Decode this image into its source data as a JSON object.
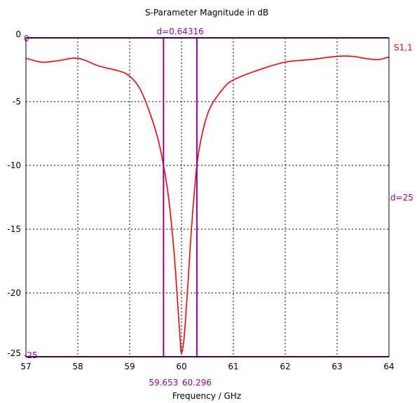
{
  "chart_data": {
    "type": "line",
    "title": "S-Parameter Magnitude in dB",
    "xlabel": "Frequency / GHz",
    "ylabel": "",
    "xlim": [
      57,
      64
    ],
    "ylim": [
      -25,
      0
    ],
    "x_ticks": [
      57,
      58,
      59,
      60,
      61,
      62,
      63,
      64
    ],
    "y_ticks": [
      0,
      -5,
      -10,
      -15,
      -20,
      -25
    ],
    "y_tick_labels": [
      "0",
      "-5",
      "-10",
      "-15",
      "-20",
      "-25"
    ],
    "grid": true,
    "grid_style": "dashed",
    "series": [
      {
        "name": "S1,1",
        "color": "#ff0000",
        "x": [
          57.0,
          57.3,
          57.6,
          58.0,
          58.4,
          58.8,
          59.0,
          59.2,
          59.4,
          59.55,
          59.653,
          59.75,
          59.85,
          59.93,
          59.98,
          60.0,
          60.05,
          60.12,
          60.2,
          60.296,
          60.4,
          60.55,
          60.8,
          61.0,
          61.5,
          62.0,
          62.5,
          63.0,
          63.3,
          63.6,
          63.8,
          64.0
        ],
        "y": [
          -1.6,
          -1.9,
          -1.8,
          -1.6,
          -2.2,
          -2.6,
          -3.0,
          -4.0,
          -6.0,
          -8.0,
          -10.0,
          -12.5,
          -16.5,
          -21.0,
          -24.0,
          -24.7,
          -23.5,
          -19.5,
          -14.5,
          -10.0,
          -7.5,
          -5.5,
          -4.0,
          -3.3,
          -2.5,
          -1.9,
          -1.7,
          -1.45,
          -1.45,
          -1.65,
          -1.7,
          -1.5
        ]
      }
    ],
    "markers": {
      "color": "#990099",
      "vertical": [
        {
          "x": 59.653,
          "label": "59.653"
        },
        {
          "x": 60.296,
          "label": "60.296"
        }
      ],
      "horizontal": [
        {
          "y": 0,
          "label": "0"
        },
        {
          "y": -25,
          "label": "-25"
        }
      ],
      "dx_label": "d=0.64316",
      "dy_label": "d=25"
    }
  }
}
